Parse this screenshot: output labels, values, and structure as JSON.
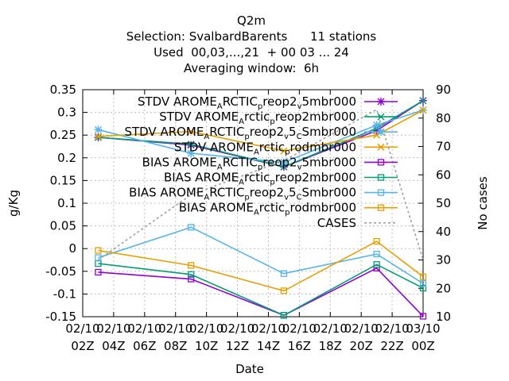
{
  "chart_data": {
    "type": "line",
    "title": [
      "Q2m",
      "Selection: SvalbardBarents      11 stations",
      "Used  00,03,...,21  + 00 03 ... 24",
      "Averaging window:  6h"
    ],
    "xlabel": "Date",
    "ylabel": "g/Kg",
    "y2label": "No cases",
    "x_ticks": [
      [
        "02/10",
        "02Z"
      ],
      [
        "02/10",
        "04Z"
      ],
      [
        "02/10",
        "06Z"
      ],
      [
        "02/10",
        "08Z"
      ],
      [
        "02/10",
        "10Z"
      ],
      [
        "02/10",
        "12Z"
      ],
      [
        "02/10",
        "14Z"
      ],
      [
        "02/10",
        "16Z"
      ],
      [
        "02/10",
        "18Z"
      ],
      [
        "02/10",
        "20Z"
      ],
      [
        "02/10",
        "22Z"
      ],
      [
        "03/10",
        "00Z"
      ]
    ],
    "x_hours": [
      2,
      4,
      6,
      8,
      10,
      12,
      14,
      16,
      18,
      20,
      22,
      24
    ],
    "xlim_hours": [
      2,
      24
    ],
    "ylim": [
      -0.15,
      0.35
    ],
    "y_ticks": [
      "-0.15",
      "-0.1",
      "-0.05",
      "0",
      "0.05",
      "0.1",
      "0.15",
      "0.2",
      "0.25",
      "0.3",
      "0.35"
    ],
    "y_tick_values": [
      -0.15,
      -0.1,
      -0.05,
      0,
      0.05,
      0.1,
      0.15,
      0.2,
      0.25,
      0.3,
      0.35
    ],
    "y2lim": [
      10,
      90
    ],
    "y2_ticks": [
      "10",
      "20",
      "30",
      "40",
      "50",
      "60",
      "70",
      "80",
      "90"
    ],
    "y2_tick_values": [
      10,
      20,
      30,
      40,
      50,
      60,
      70,
      80,
      90
    ],
    "grid": true,
    "legend_position": "top-right",
    "series": [
      {
        "label_parts": [
          "STDV AROME",
          "A",
          "RCTIC",
          "p",
          "reop2",
          "v",
          "5mbr000"
        ],
        "color": "#9400d3",
        "marker": "star",
        "dash": "",
        "x": [
          3,
          9,
          15,
          21,
          24
        ],
        "y": [
          0.245,
          0.228,
          0.18,
          0.26,
          0.326
        ]
      },
      {
        "label_parts": [
          "STDV AROME",
          "A",
          "rctic",
          "p",
          "reop2mbr000"
        ],
        "color": "#009e73",
        "marker": "x",
        "dash": "",
        "x": [
          3,
          9,
          15,
          21,
          24
        ],
        "y": [
          0.245,
          0.23,
          0.18,
          0.265,
          0.326
        ]
      },
      {
        "label_parts": [
          "STDV AROME",
          "A",
          "RCTIC",
          "p",
          "reop2",
          "v",
          "5",
          "C",
          "Smbr000"
        ],
        "color": "#56b4e9",
        "marker": "star",
        "dash": "",
        "x": [
          3,
          9,
          15,
          21,
          24
        ],
        "y": [
          0.262,
          0.21,
          0.19,
          0.272,
          0.305
        ]
      },
      {
        "label_parts": [
          "STDV AROME",
          "A",
          "rctic",
          "p",
          "rodmbr000"
        ],
        "color": "#e69f00",
        "marker": "x",
        "dash": "",
        "x": [
          3,
          9,
          15,
          21,
          24
        ],
        "y": [
          0.247,
          0.258,
          0.215,
          0.25,
          0.305
        ]
      },
      {
        "label_parts": [
          "BIAS AROME",
          "A",
          "RCTIC",
          "p",
          "reop2",
          "v",
          "5mbr000"
        ],
        "color": "#9400d3",
        "marker": "square",
        "dash": "",
        "x": [
          3,
          9,
          15,
          21,
          24
        ],
        "y": [
          -0.052,
          -0.067,
          -0.147,
          -0.043,
          -0.149
        ]
      },
      {
        "label_parts": [
          "BIAS AROME",
          "A",
          "rctic",
          "p",
          "reop2mbr000"
        ],
        "color": "#009e73",
        "marker": "square",
        "dash": "",
        "x": [
          3,
          9,
          15,
          21,
          24
        ],
        "y": [
          -0.033,
          -0.057,
          -0.147,
          -0.035,
          -0.087
        ]
      },
      {
        "label_parts": [
          "BIAS AROME",
          "A",
          "RCTIC",
          "p",
          "reop2",
          "v",
          "5",
          "C",
          "Smbr000"
        ],
        "color": "#56b4e9",
        "marker": "square",
        "dash": "",
        "x": [
          3,
          9,
          15,
          21,
          24
        ],
        "y": [
          -0.02,
          0.047,
          -0.055,
          -0.012,
          -0.077
        ]
      },
      {
        "label_parts": [
          "BIAS AROME",
          "A",
          "rctic",
          "p",
          "rodmbr000"
        ],
        "color": "#e69f00",
        "marker": "square",
        "dash": "",
        "x": [
          3,
          9,
          15,
          21,
          24
        ],
        "y": [
          -0.004,
          -0.037,
          -0.093,
          0.016,
          -0.062
        ]
      },
      {
        "label_parts": [
          "CASES"
        ],
        "color": "#a0a0a0",
        "marker": "none",
        "dash": "3,3",
        "axis": "y2",
        "x": [
          3,
          9,
          15,
          21,
          24
        ],
        "y": [
          30,
          53,
          65,
          83,
          30
        ]
      }
    ]
  }
}
